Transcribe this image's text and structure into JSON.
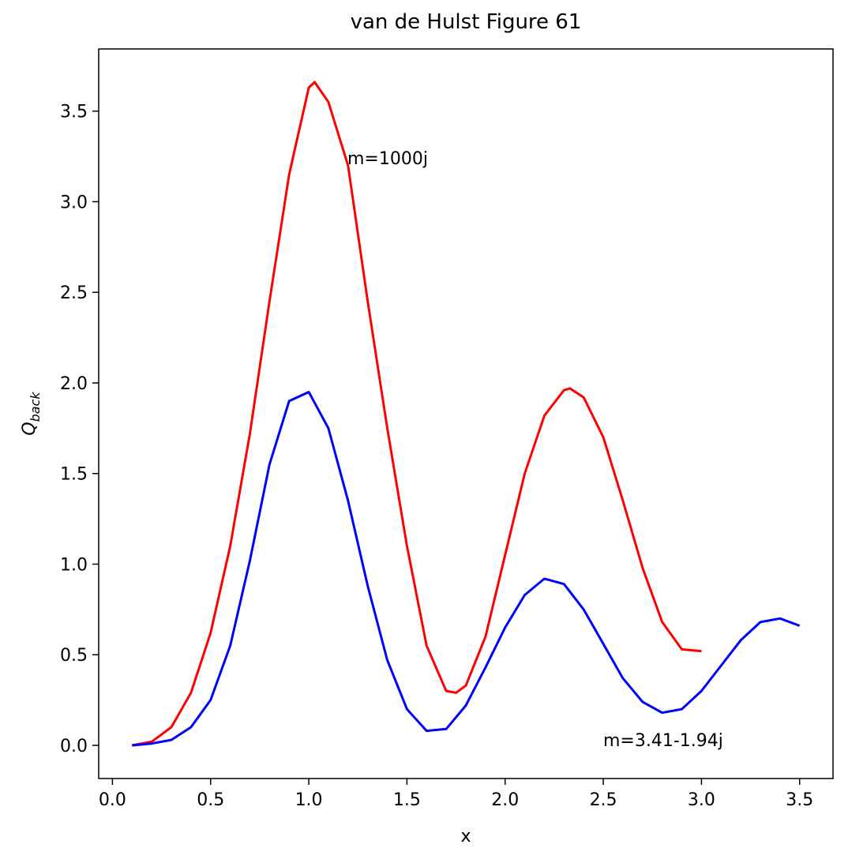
{
  "chart_data": {
    "type": "line",
    "title": "van de Hulst Figure 61",
    "xlabel": "x",
    "ylabel": "Q",
    "ylabel_sub": "back",
    "xlim": [
      -0.07,
      3.67
    ],
    "ylim": [
      -0.183,
      3.843
    ],
    "xticks": [
      {
        "value": 0,
        "label": "0.0"
      },
      0.5,
      {
        "value": 1,
        "label": "1.0"
      },
      1.5,
      {
        "value": 2,
        "label": "2.0"
      },
      2.5,
      {
        "value": 3,
        "label": "3.0"
      },
      3.5
    ],
    "yticks": [
      {
        "value": 0,
        "label": "0.0"
      },
      0.5,
      {
        "value": 1,
        "label": "1.0"
      },
      1.5,
      {
        "value": 2,
        "label": "2.0"
      },
      2.5,
      {
        "value": 3,
        "label": "3.0"
      },
      3.5
    ],
    "series": [
      {
        "name": "m=1000j",
        "color": "#ff0000",
        "x": [
          0.1,
          0.2,
          0.3,
          0.4,
          0.5,
          0.6,
          0.7,
          0.8,
          0.9,
          1.0,
          1.03,
          1.1,
          1.2,
          1.3,
          1.4,
          1.5,
          1.6,
          1.7,
          1.75,
          1.8,
          1.9,
          2.0,
          2.1,
          2.2,
          2.3,
          2.33,
          2.4,
          2.5,
          2.6,
          2.7,
          2.8,
          2.9,
          3.0
        ],
        "values": [
          0.0,
          0.02,
          0.1,
          0.29,
          0.62,
          1.1,
          1.72,
          2.45,
          3.15,
          3.63,
          3.66,
          3.55,
          3.2,
          2.45,
          1.75,
          1.1,
          0.55,
          0.3,
          0.29,
          0.33,
          0.6,
          1.05,
          1.5,
          1.82,
          1.96,
          1.97,
          1.92,
          1.7,
          1.35,
          0.98,
          0.68,
          0.53,
          0.52
        ]
      },
      {
        "name": "m=3.41-1.94j",
        "color": "#0000ff",
        "x": [
          0.1,
          0.2,
          0.3,
          0.4,
          0.5,
          0.6,
          0.7,
          0.8,
          0.9,
          1.0,
          1.1,
          1.2,
          1.3,
          1.4,
          1.5,
          1.6,
          1.7,
          1.8,
          1.9,
          2.0,
          2.1,
          2.2,
          2.3,
          2.4,
          2.5,
          2.6,
          2.7,
          2.8,
          2.9,
          3.0,
          3.1,
          3.2,
          3.3,
          3.4,
          3.5
        ],
        "values": [
          0.0,
          0.01,
          0.03,
          0.1,
          0.25,
          0.55,
          1.02,
          1.55,
          1.9,
          1.95,
          1.75,
          1.35,
          0.88,
          0.47,
          0.2,
          0.08,
          0.09,
          0.22,
          0.43,
          0.65,
          0.83,
          0.92,
          0.89,
          0.75,
          0.56,
          0.37,
          0.24,
          0.18,
          0.2,
          0.3,
          0.44,
          0.58,
          0.68,
          0.7,
          0.66
        ]
      }
    ]
  }
}
